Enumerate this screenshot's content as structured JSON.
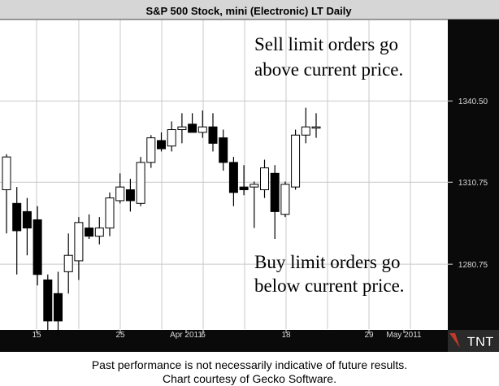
{
  "footer": {
    "line1": "Past performance is not necessarily indicative of future results.",
    "line2": "Chart courtesy of Gecko Software."
  },
  "chart_data": {
    "type": "candlestick",
    "title": "S&P 500 Stock, mini (Electronic) LT Daily",
    "ylim": [
      1257,
      1370
    ],
    "y_ticks": [
      1280.75,
      1310.75,
      1340.5
    ],
    "y_tick_labels": [
      "1280.75",
      "1310.75",
      "1340.50"
    ],
    "x_tick_labels": [
      "15",
      "25",
      "Apr 2011",
      "6",
      "18",
      "29",
      "May 2011"
    ],
    "grid": true,
    "annotations": [
      {
        "lines": [
          "Sell limit orders go",
          "above current price."
        ]
      },
      {
        "lines": [
          "Buy limit orders go",
          "below current price."
        ]
      }
    ],
    "candles": [
      {
        "o": 1308,
        "h": 1321,
        "l": 1292,
        "c": 1320
      },
      {
        "o": 1303,
        "h": 1309,
        "l": 1277,
        "c": 1293
      },
      {
        "o": 1300,
        "h": 1305,
        "l": 1284,
        "c": 1294
      },
      {
        "o": 1297,
        "h": 1302,
        "l": 1273,
        "c": 1277
      },
      {
        "o": 1275,
        "h": 1277,
        "l": 1256,
        "c": 1260
      },
      {
        "o": 1270,
        "h": 1278,
        "l": 1255,
        "c": 1260
      },
      {
        "o": 1278,
        "h": 1292,
        "l": 1270,
        "c": 1284
      },
      {
        "o": 1282,
        "h": 1298,
        "l": 1275,
        "c": 1296
      },
      {
        "o": 1294,
        "h": 1299,
        "l": 1290,
        "c": 1291
      },
      {
        "o": 1291,
        "h": 1298,
        "l": 1288,
        "c": 1294
      },
      {
        "o": 1294,
        "h": 1307,
        "l": 1291,
        "c": 1305
      },
      {
        "o": 1304,
        "h": 1314,
        "l": 1303,
        "c": 1309
      },
      {
        "o": 1308,
        "h": 1312,
        "l": 1300,
        "c": 1304
      },
      {
        "o": 1303,
        "h": 1320,
        "l": 1302,
        "c": 1318
      },
      {
        "o": 1318,
        "h": 1328,
        "l": 1316,
        "c": 1327
      },
      {
        "o": 1326,
        "h": 1329,
        "l": 1322,
        "c": 1323
      },
      {
        "o": 1324,
        "h": 1333,
        "l": 1322,
        "c": 1330
      },
      {
        "o": 1330,
        "h": 1336,
        "l": 1325,
        "c": 1331
      },
      {
        "o": 1332,
        "h": 1336,
        "l": 1329,
        "c": 1329
      },
      {
        "o": 1329,
        "h": 1337,
        "l": 1327,
        "c": 1331
      },
      {
        "o": 1331,
        "h": 1336,
        "l": 1322,
        "c": 1325
      },
      {
        "o": 1327,
        "h": 1330,
        "l": 1315,
        "c": 1318
      },
      {
        "o": 1318,
        "h": 1320,
        "l": 1302,
        "c": 1307
      },
      {
        "o": 1309,
        "h": 1317,
        "l": 1306,
        "c": 1308
      },
      {
        "o": 1309,
        "h": 1311,
        "l": 1294,
        "c": 1310
      },
      {
        "o": 1308,
        "h": 1319,
        "l": 1305,
        "c": 1316
      },
      {
        "o": 1314,
        "h": 1317,
        "l": 1290,
        "c": 1300
      },
      {
        "o": 1299,
        "h": 1311,
        "l": 1298,
        "c": 1310
      },
      {
        "o": 1309,
        "h": 1330,
        "l": 1308,
        "c": 1328
      },
      {
        "o": 1328,
        "h": 1338,
        "l": 1325,
        "c": 1331
      },
      {
        "o": 1331,
        "h": 1336,
        "l": 1327,
        "c": 1331
      }
    ],
    "colors": {
      "title_band": "#d6d6d6",
      "axis_background": "#0a0a0a",
      "axis_text": "#d8d8d8",
      "grid": "#c9c9c9",
      "candle_up_fill": "#ffffff",
      "candle_down_fill": "#000000",
      "candle_stroke": "#000000"
    },
    "logo_text": "TNT"
  }
}
